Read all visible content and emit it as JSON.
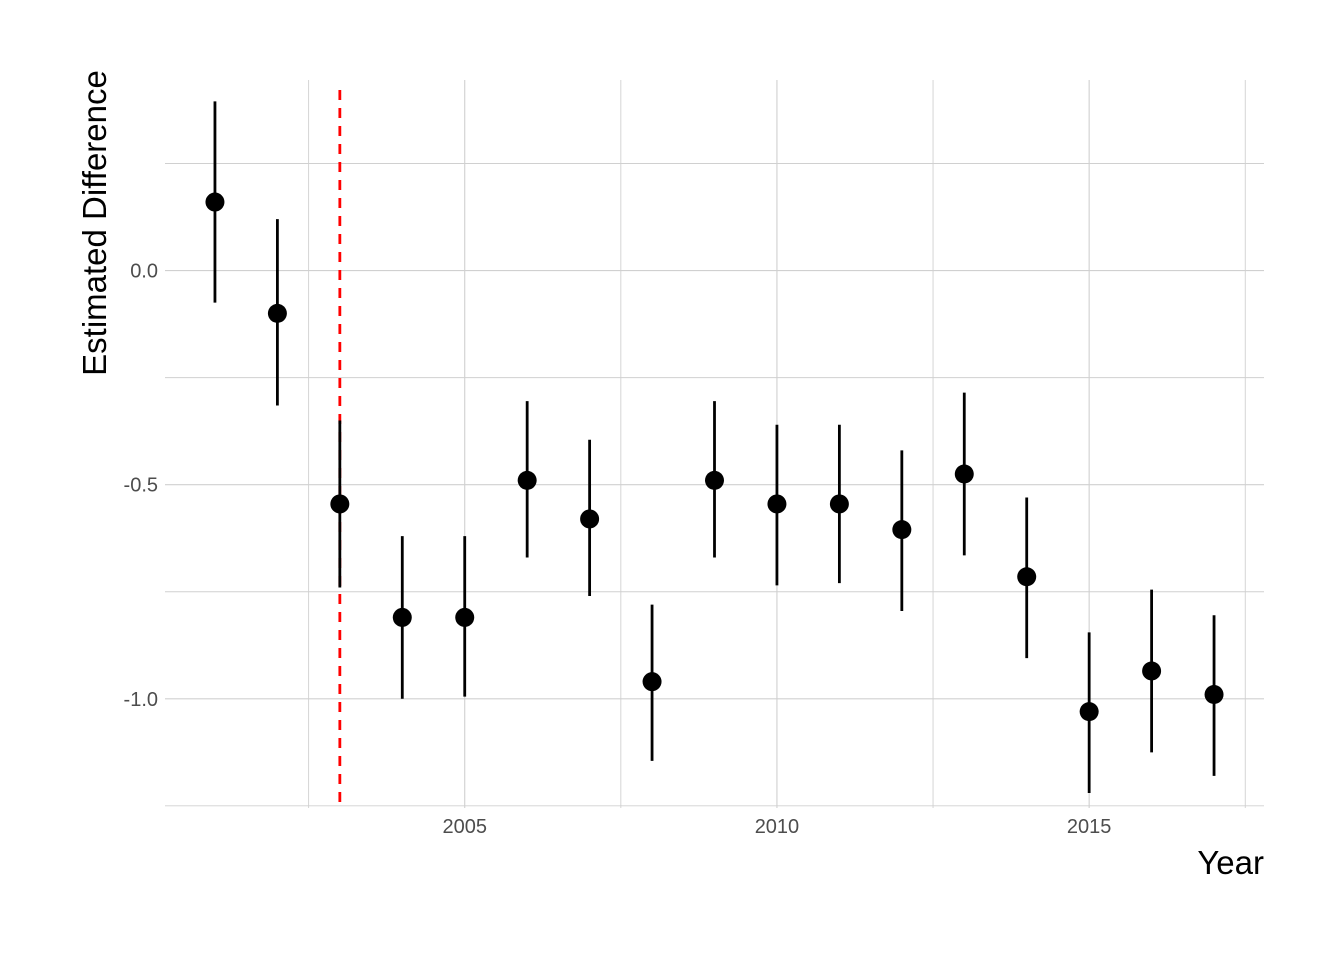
{
  "chart_data": {
    "type": "scatter",
    "subtype": "point-range",
    "title": "",
    "xlabel": "Year",
    "ylabel": "Estimated Difference",
    "xlim": [
      2000.2,
      2017.8
    ],
    "ylim": [
      -1.255,
      0.445
    ],
    "x_ticks": [
      {
        "value": 2005,
        "label": "2005"
      },
      {
        "value": 2010,
        "label": "2010"
      },
      {
        "value": 2015,
        "label": "2015"
      }
    ],
    "y_ticks": [
      {
        "value": 0.0,
        "label": "0.0"
      },
      {
        "value": -0.5,
        "label": "-0.5"
      },
      {
        "value": -1.0,
        "label": "-1.0"
      }
    ],
    "x_minor": [
      2002.5,
      2007.5,
      2012.5,
      2017.5
    ],
    "y_minor": [
      0.25,
      -0.25,
      -0.75,
      -1.25
    ],
    "grid": true,
    "reference_line": {
      "axis": "x",
      "value": 2003,
      "style": "dashed",
      "color": "#ff0000"
    },
    "point_color": "#000000",
    "series": [
      {
        "x": [
          2001,
          2002,
          2003,
          2004,
          2005,
          2006,
          2007,
          2008,
          2009,
          2010,
          2011,
          2012,
          2013,
          2014,
          2015,
          2016,
          2017
        ],
        "y": [
          0.16,
          -0.1,
          -0.545,
          -0.81,
          -0.81,
          -0.49,
          -0.58,
          -0.96,
          -0.49,
          -0.545,
          -0.545,
          -0.605,
          -0.475,
          -0.715,
          -1.03,
          -0.935,
          -0.99
        ],
        "lower": [
          -0.075,
          -0.315,
          -0.74,
          -1.0,
          -0.995,
          -0.67,
          -0.76,
          -1.145,
          -0.67,
          -0.735,
          -0.73,
          -0.795,
          -0.665,
          -0.905,
          -1.22,
          -1.125,
          -1.18
        ],
        "upper": [
          0.395,
          0.12,
          -0.35,
          -0.62,
          -0.62,
          -0.305,
          -0.395,
          -0.78,
          -0.305,
          -0.36,
          -0.36,
          -0.42,
          -0.285,
          -0.53,
          -0.845,
          -0.745,
          -0.805
        ]
      }
    ]
  }
}
